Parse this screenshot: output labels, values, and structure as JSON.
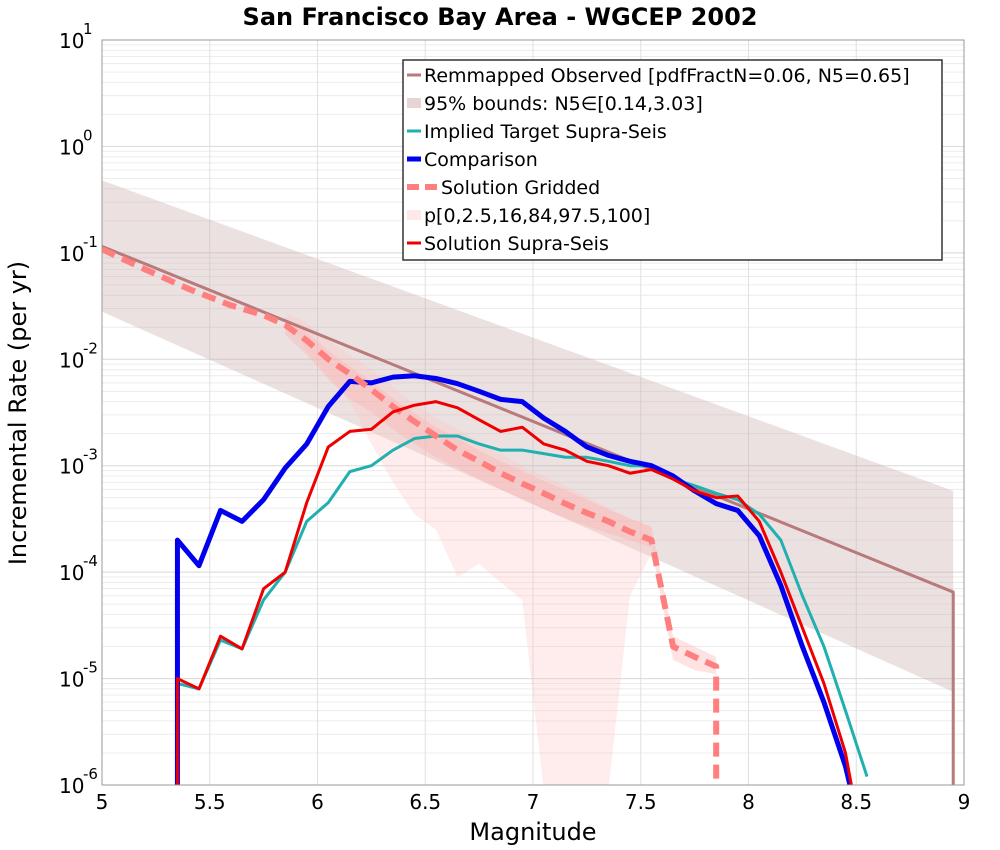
{
  "chart_data": {
    "type": "line",
    "title": "San Francisco Bay Area - WGCEP 2002",
    "xlabel": "Magnitude",
    "ylabel": "Incremental Rate (per yr)",
    "xlim": [
      5,
      9
    ],
    "ylim": [
      1e-06,
      10
    ],
    "yscale": "log",
    "grid": true,
    "legend_placement": "top-right",
    "x_ticks": [
      "5",
      "5.5",
      "6",
      "6.5",
      "7",
      "7.5",
      "8",
      "8.5",
      "9"
    ],
    "y_ticks": [
      {
        "base": "10",
        "exp": "-6",
        "value": 1e-06
      },
      {
        "base": "10",
        "exp": "-5",
        "value": 1e-05
      },
      {
        "base": "10",
        "exp": "-4",
        "value": 0.0001
      },
      {
        "base": "10",
        "exp": "-3",
        "value": 0.001
      },
      {
        "base": "10",
        "exp": "-2",
        "value": 0.01
      },
      {
        "base": "10",
        "exp": "-1",
        "value": 0.1
      },
      {
        "base": "10",
        "exp": "0",
        "value": 1
      },
      {
        "base": "10",
        "exp": "1",
        "value": 10
      }
    ],
    "bands": [
      {
        "name": "95% bounds: N5∈[0.14,3.03]",
        "color": "#c9a9a9",
        "opacity": 0.35,
        "x": [
          5.0,
          8.95
        ],
        "lower": [
          0.028,
          7.5e-06
        ],
        "upper": [
          0.48,
          0.00058
        ]
      },
      {
        "name": "p[0,2.5,16,84,97.5,100]",
        "color": "#ffc0c0",
        "opacity": 0.3,
        "x": [
          5.75,
          5.85,
          5.95,
          6.05,
          6.15,
          6.25,
          6.35,
          6.45,
          6.55,
          6.65,
          6.75,
          6.85,
          6.95,
          7.05,
          7.15,
          7.25,
          7.35,
          7.45,
          7.55
        ],
        "lower": [
          0.03,
          0.028,
          0.012,
          0.007,
          0.004,
          0.0016,
          0.0007,
          0.00035,
          0.00025,
          9e-05,
          0.00012,
          8e-05,
          5.5e-05,
          9e-07,
          9e-07,
          9e-07,
          9e-07,
          6e-05,
          0.00015
        ],
        "upper": [
          0.03,
          0.028,
          0.022,
          0.015,
          0.011,
          0.008,
          0.0055,
          0.0038,
          0.0028,
          0.0022,
          0.0017,
          0.0013,
          0.001,
          0.0008,
          0.00065,
          0.00052,
          0.0004,
          0.00032,
          0.00026
        ]
      },
      {
        "name": "p[0,2.5,16,84,97.5,100] inner",
        "color": "#ffb0b0",
        "opacity": 0.35,
        "x": [
          5.85,
          5.95,
          6.05,
          6.15,
          6.25,
          6.35,
          6.45,
          6.55,
          6.65,
          6.75,
          6.85,
          6.95,
          7.05,
          7.15,
          7.25,
          7.35,
          7.45,
          7.55,
          7.65,
          7.75,
          7.85
        ],
        "lower": [
          0.017,
          0.011,
          0.0065,
          0.0042,
          0.0032,
          0.0022,
          0.0016,
          0.0012,
          0.00095,
          0.00075,
          0.0006,
          0.00048,
          0.00039,
          0.00032,
          0.00027,
          0.00023,
          0.0002,
          0.00017,
          1.5e-05,
          1.2e-05,
          1.1e-05
        ],
        "upper": [
          0.025,
          0.018,
          0.012,
          0.0085,
          0.0062,
          0.0043,
          0.0031,
          0.0023,
          0.0018,
          0.0014,
          0.0011,
          0.0009,
          0.00072,
          0.00059,
          0.00048,
          0.00039,
          0.00032,
          0.00027,
          2.5e-05,
          2e-05,
          1.6e-05
        ]
      }
    ],
    "series": [
      {
        "name": "Remmapped Observed [pdfFractN=0.06, N5=0.65]",
        "color": "#b87a7a",
        "width": 3,
        "dash": "",
        "x": [
          5.0,
          8.95,
          8.95
        ],
        "y": [
          0.115,
          6.5e-05,
          1e-07
        ]
      },
      {
        "name": "Implied Target Supra-Seis",
        "color": "#20b0b0",
        "width": 3,
        "dash": "",
        "x": [
          5.35,
          5.35,
          5.45,
          5.55,
          5.65,
          5.75,
          5.85,
          5.95,
          6.05,
          6.15,
          6.25,
          6.35,
          6.45,
          6.55,
          6.65,
          6.75,
          6.85,
          6.95,
          7.05,
          7.15,
          7.25,
          7.35,
          7.45,
          7.55,
          7.65,
          7.75,
          7.85,
          7.95,
          8.05,
          8.15,
          8.25,
          8.35,
          8.45,
          8.55
        ],
        "y": [
          1e-07,
          9e-06,
          8e-06,
          2.3e-05,
          1.9e-05,
          5.5e-05,
          0.0001,
          0.0003,
          0.00045,
          0.00088,
          0.001,
          0.0014,
          0.0018,
          0.0019,
          0.0019,
          0.0016,
          0.0014,
          0.0014,
          0.0013,
          0.0012,
          0.0012,
          0.0011,
          0.001,
          0.001,
          0.00075,
          0.00065,
          0.00055,
          0.00048,
          0.00035,
          0.0002,
          6e-05,
          2e-05,
          5e-06,
          1.2e-06
        ]
      },
      {
        "name": "Comparison",
        "color": "#0000ee",
        "width": 5,
        "dash": "",
        "x": [
          5.35,
          5.35,
          5.45,
          5.55,
          5.65,
          5.75,
          5.85,
          5.95,
          6.05,
          6.15,
          6.25,
          6.35,
          6.45,
          6.55,
          6.65,
          6.75,
          6.85,
          6.95,
          7.05,
          7.15,
          7.25,
          7.35,
          7.45,
          7.55,
          7.65,
          7.75,
          7.85,
          7.95,
          8.05,
          8.15,
          8.25,
          8.35,
          8.45,
          8.5
        ],
        "y": [
          1e-07,
          0.0002,
          0.000115,
          0.00038,
          0.0003,
          0.00048,
          0.00095,
          0.0016,
          0.0036,
          0.0062,
          0.006,
          0.0068,
          0.007,
          0.0066,
          0.0059,
          0.005,
          0.0042,
          0.004,
          0.0028,
          0.0021,
          0.0015,
          0.00125,
          0.0011,
          0.001,
          0.0008,
          0.00058,
          0.00044,
          0.00038,
          0.00022,
          7.5e-05,
          2e-05,
          6e-06,
          1.5e-06,
          1e-07
        ]
      },
      {
        "name": "Solution Gridded",
        "color": "#ff7f7f",
        "width": 6,
        "dash": "14,8",
        "x": [
          5.0,
          5.2,
          5.4,
          5.6,
          5.75,
          5.85,
          5.95,
          6.05,
          6.15,
          6.25,
          6.35,
          6.45,
          6.55,
          6.65,
          6.75,
          6.85,
          6.95,
          7.05,
          7.15,
          7.25,
          7.35,
          7.45,
          7.55,
          7.65,
          7.75,
          7.85,
          7.85
        ],
        "y": [
          0.108,
          0.07,
          0.046,
          0.032,
          0.026,
          0.021,
          0.015,
          0.01,
          0.0073,
          0.0052,
          0.0036,
          0.0026,
          0.0019,
          0.0014,
          0.0011,
          0.00085,
          0.00068,
          0.00055,
          0.00044,
          0.00036,
          0.0003,
          0.00024,
          0.0002,
          2e-05,
          1.6e-05,
          1.3e-05,
          1e-06
        ]
      },
      {
        "name": "Solution Supra-Seis",
        "color": "#ee0000",
        "width": 3,
        "dash": "",
        "x": [
          5.35,
          5.35,
          5.45,
          5.55,
          5.65,
          5.75,
          5.85,
          5.95,
          6.05,
          6.15,
          6.25,
          6.35,
          6.45,
          6.55,
          6.65,
          6.75,
          6.85,
          6.95,
          7.05,
          7.15,
          7.25,
          7.35,
          7.45,
          7.55,
          7.65,
          7.75,
          7.85,
          7.95,
          8.05,
          8.15,
          8.25,
          8.35,
          8.45,
          8.5
        ],
        "y": [
          1e-07,
          1e-05,
          8e-06,
          2.5e-05,
          1.9e-05,
          7e-05,
          0.0001,
          0.00045,
          0.0015,
          0.0021,
          0.0022,
          0.0032,
          0.0037,
          0.004,
          0.0035,
          0.0027,
          0.0021,
          0.0023,
          0.0016,
          0.0014,
          0.0011,
          0.001,
          0.00085,
          0.00092,
          0.00075,
          0.00058,
          0.0005,
          0.00052,
          0.0003,
          0.0001,
          3e-05,
          9e-06,
          2e-06,
          1e-07
        ]
      }
    ],
    "legend": [
      {
        "label": "Remmapped Observed [pdfFractN=0.06, N5=0.65]",
        "style": "line",
        "color": "#b87a7a",
        "width": 3
      },
      {
        "label": "95% bounds: N5∈[0.14,3.03]",
        "style": "band",
        "color": "#e8d4d4",
        "width": 10
      },
      {
        "label": "Implied Target Supra-Seis",
        "style": "line",
        "color": "#20b0b0",
        "width": 3
      },
      {
        "label": "Comparison",
        "style": "line",
        "color": "#0000ee",
        "width": 5
      },
      {
        "label": "Solution Gridded",
        "style": "dash",
        "color": "#ff7f7f",
        "width": 6
      },
      {
        "label": "p[0,2.5,16,84,97.5,100]",
        "style": "band",
        "color": "#ffe8e8",
        "width": 10
      },
      {
        "label": "Solution Supra-Seis",
        "style": "line",
        "color": "#ee0000",
        "width": 3
      }
    ]
  }
}
